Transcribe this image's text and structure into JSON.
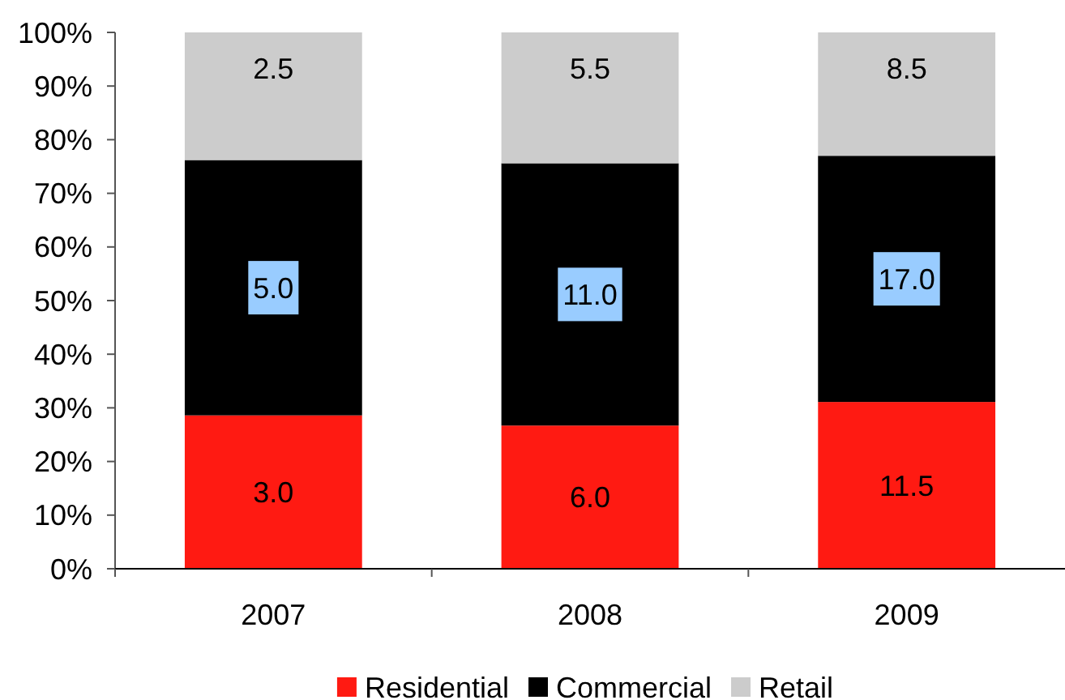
{
  "chart_data": {
    "type": "bar",
    "stacked": true,
    "categories": [
      "2007",
      "2008",
      "2009"
    ],
    "series": [
      {
        "name": "Residential",
        "color": "#ff1a12",
        "values": [
          28.6,
          26.7,
          31.1
        ]
      },
      {
        "name": "Commercial",
        "color": "#000000",
        "values": [
          47.6,
          48.9,
          45.9
        ]
      },
      {
        "name": "Retail",
        "color": "#cccccc",
        "values": [
          23.8,
          24.4,
          23.0
        ]
      }
    ],
    "ylim": [
      0,
      100
    ],
    "yticks": [
      {
        "value": 0,
        "label": "0%"
      },
      {
        "value": 10,
        "label": "10%"
      },
      {
        "value": 20,
        "label": "20%"
      },
      {
        "value": 30,
        "label": "30%"
      },
      {
        "value": 40,
        "label": "40%"
      },
      {
        "value": 50,
        "label": "50%"
      },
      {
        "value": 60,
        "label": "60%"
      },
      {
        "value": 70,
        "label": "70%"
      },
      {
        "value": 80,
        "label": "80%"
      },
      {
        "value": 90,
        "label": "90%"
      },
      {
        "value": 100,
        "label": "100%"
      }
    ],
    "annotations": [
      "3.0",
      "6.0",
      "11.5",
      "5.0",
      "11.0",
      "17.0",
      "2.5",
      "5.5",
      "8.5"
    ],
    "grid": false,
    "legend": "bottom"
  }
}
